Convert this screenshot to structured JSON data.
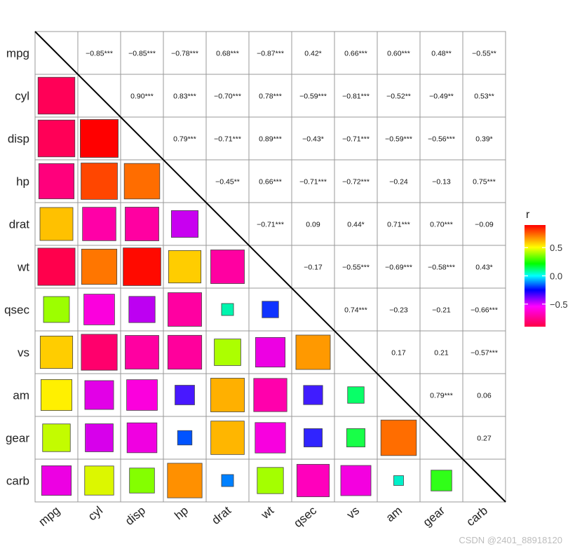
{
  "chart_data": {
    "type": "heatmap",
    "variables": [
      "mpg",
      "cyl",
      "disp",
      "hp",
      "drat",
      "wt",
      "qsec",
      "vs",
      "am",
      "gear",
      "carb"
    ],
    "upper_labels": [
      [
        "",
        "−0.85***",
        "−0.85***",
        "−0.78***",
        "0.68***",
        "−0.87***",
        "0.42*",
        "0.66***",
        "0.60***",
        "0.48**",
        "−0.55**"
      ],
      [
        "",
        "",
        "0.90***",
        "0.83***",
        "−0.70***",
        "0.78***",
        "−0.59***",
        "−0.81***",
        "−0.52**",
        "−0.49**",
        "0.53**"
      ],
      [
        "",
        "",
        "",
        "0.79***",
        "−0.71***",
        "0.89***",
        "−0.43*",
        "−0.71***",
        "−0.59***",
        "−0.56***",
        "0.39*"
      ],
      [
        "",
        "",
        "",
        "",
        "−0.45**",
        "0.66***",
        "−0.71***",
        "−0.72***",
        "−0.24",
        "−0.13",
        "0.75***"
      ],
      [
        "",
        "",
        "",
        "",
        "",
        "−0.71***",
        "0.09",
        "0.44*",
        "0.71***",
        "0.70***",
        "−0.09"
      ],
      [
        "",
        "",
        "",
        "",
        "",
        "",
        "−0.17",
        "−0.55***",
        "−0.69***",
        "−0.58***",
        "0.43*"
      ],
      [
        "",
        "",
        "",
        "",
        "",
        "",
        "",
        "0.74***",
        "−0.23",
        "−0.21",
        "−0.66***"
      ],
      [
        "",
        "",
        "",
        "",
        "",
        "",
        "",
        "",
        "0.17",
        "0.21",
        "−0.57***"
      ],
      [
        "",
        "",
        "",
        "",
        "",
        "",
        "",
        "",
        "",
        "0.79***",
        "0.06"
      ],
      [
        "",
        "",
        "",
        "",
        "",
        "",
        "",
        "",
        "",
        "",
        "0.27"
      ],
      [
        "",
        "",
        "",
        "",
        "",
        "",
        "",
        "",
        "",
        "",
        ""
      ]
    ],
    "lower_values": [
      [],
      [
        -0.85
      ],
      [
        -0.85,
        0.9
      ],
      [
        -0.78,
        0.83,
        0.79
      ],
      [
        0.68,
        -0.7,
        -0.71,
        -0.45
      ],
      [
        -0.87,
        0.78,
        0.89,
        0.66,
        -0.71
      ],
      [
        0.42,
        -0.59,
        -0.43,
        -0.71,
        0.09,
        -0.17
      ],
      [
        0.66,
        -0.81,
        -0.71,
        -0.72,
        0.44,
        -0.55,
        0.74
      ],
      [
        0.6,
        -0.52,
        -0.59,
        -0.24,
        0.71,
        -0.69,
        -0.23,
        0.17
      ],
      [
        0.48,
        -0.49,
        -0.56,
        -0.13,
        0.7,
        -0.58,
        -0.21,
        0.21,
        0.79
      ],
      [
        -0.55,
        0.53,
        0.39,
        0.75,
        -0.09,
        0.43,
        -0.66,
        -0.57,
        0.06,
        0.27
      ]
    ],
    "legend": {
      "title": "r",
      "ticks": [
        0.5,
        0.0,
        -0.5
      ],
      "tick_labels": [
        "0.5",
        "0.0",
        "−0.5"
      ],
      "range": [
        -0.9,
        0.9
      ],
      "position": "right"
    },
    "diagonal_line": true
  },
  "watermark": "CSDN @2401_88918120"
}
